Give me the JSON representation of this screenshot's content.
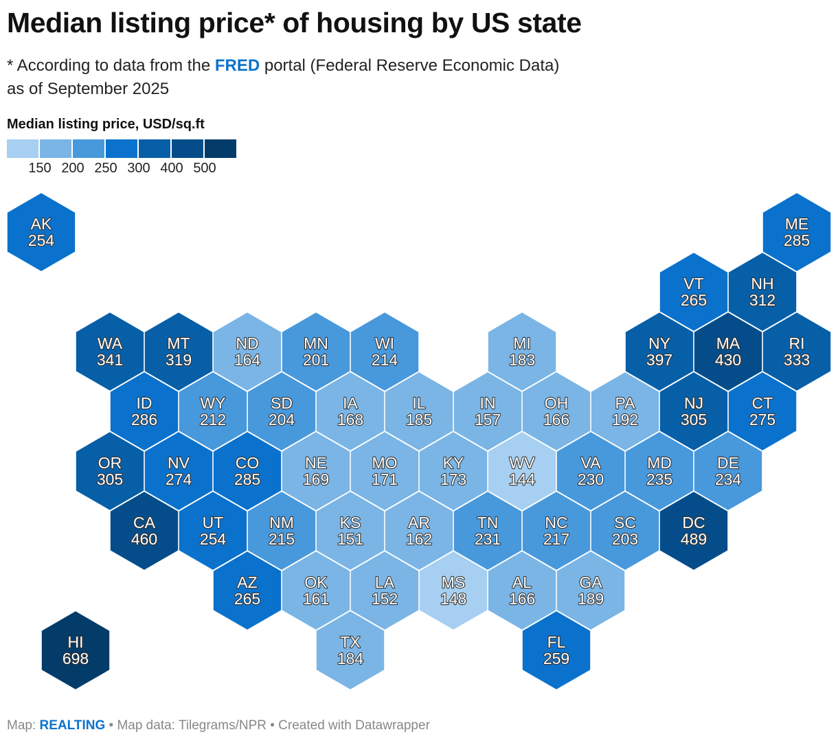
{
  "title": "Median listing price* of housing by US state",
  "subtitle": {
    "line1_prefix": "* According to data from the ",
    "line1_link": "FRED",
    "line1_suffix": " portal (Federal Reserve Economic Data)",
    "line2": "as of September 2025"
  },
  "legend": {
    "title": "Median listing price, USD/sq.ft",
    "colors": [
      "#a6cff1",
      "#7ab5e6",
      "#4898dc",
      "#0a72cc",
      "#075fa8",
      "#054d8a",
      "#033b69"
    ],
    "ticks": [
      "150",
      "200",
      "250",
      "300",
      "400",
      "500"
    ],
    "thresholds": [
      150,
      200,
      250,
      300,
      400,
      500
    ]
  },
  "chart_data": {
    "type": "hex-tile-map",
    "value_label": "Median listing price, USD/sq.ft",
    "states": [
      {
        "abbr": "AK",
        "value": 254,
        "row": 0,
        "col": 0
      },
      {
        "abbr": "ME",
        "value": 285,
        "row": 0,
        "col": 11
      },
      {
        "abbr": "VT",
        "value": 265,
        "row": 1,
        "col": 9
      },
      {
        "abbr": "NH",
        "value": 312,
        "row": 1,
        "col": 10
      },
      {
        "abbr": "WA",
        "value": 341,
        "row": 2,
        "col": 1
      },
      {
        "abbr": "MT",
        "value": 319,
        "row": 2,
        "col": 2
      },
      {
        "abbr": "ND",
        "value": 164,
        "row": 2,
        "col": 3
      },
      {
        "abbr": "MN",
        "value": 201,
        "row": 2,
        "col": 4
      },
      {
        "abbr": "WI",
        "value": 214,
        "row": 2,
        "col": 5
      },
      {
        "abbr": "MI",
        "value": 183,
        "row": 2,
        "col": 7
      },
      {
        "abbr": "NY",
        "value": 397,
        "row": 2,
        "col": 9
      },
      {
        "abbr": "MA",
        "value": 430,
        "row": 2,
        "col": 10
      },
      {
        "abbr": "RI",
        "value": 333,
        "row": 2,
        "col": 11
      },
      {
        "abbr": "ID",
        "value": 286,
        "row": 3,
        "col": 1
      },
      {
        "abbr": "WY",
        "value": 212,
        "row": 3,
        "col": 2
      },
      {
        "abbr": "SD",
        "value": 204,
        "row": 3,
        "col": 3
      },
      {
        "abbr": "IA",
        "value": 168,
        "row": 3,
        "col": 4
      },
      {
        "abbr": "IL",
        "value": 185,
        "row": 3,
        "col": 5
      },
      {
        "abbr": "IN",
        "value": 157,
        "row": 3,
        "col": 6
      },
      {
        "abbr": "OH",
        "value": 166,
        "row": 3,
        "col": 7
      },
      {
        "abbr": "PA",
        "value": 192,
        "row": 3,
        "col": 8
      },
      {
        "abbr": "NJ",
        "value": 305,
        "row": 3,
        "col": 9
      },
      {
        "abbr": "CT",
        "value": 275,
        "row": 3,
        "col": 10
      },
      {
        "abbr": "OR",
        "value": 305,
        "row": 4,
        "col": 1
      },
      {
        "abbr": "NV",
        "value": 274,
        "row": 4,
        "col": 2
      },
      {
        "abbr": "CO",
        "value": 285,
        "row": 4,
        "col": 3
      },
      {
        "abbr": "NE",
        "value": 169,
        "row": 4,
        "col": 4
      },
      {
        "abbr": "MO",
        "value": 171,
        "row": 4,
        "col": 5
      },
      {
        "abbr": "KY",
        "value": 173,
        "row": 4,
        "col": 6
      },
      {
        "abbr": "WV",
        "value": 144,
        "row": 4,
        "col": 7
      },
      {
        "abbr": "VA",
        "value": 230,
        "row": 4,
        "col": 8
      },
      {
        "abbr": "MD",
        "value": 235,
        "row": 4,
        "col": 9
      },
      {
        "abbr": "DE",
        "value": 234,
        "row": 4,
        "col": 10
      },
      {
        "abbr": "CA",
        "value": 460,
        "row": 5,
        "col": 1
      },
      {
        "abbr": "UT",
        "value": 254,
        "row": 5,
        "col": 2
      },
      {
        "abbr": "NM",
        "value": 215,
        "row": 5,
        "col": 3
      },
      {
        "abbr": "KS",
        "value": 151,
        "row": 5,
        "col": 4
      },
      {
        "abbr": "AR",
        "value": 162,
        "row": 5,
        "col": 5
      },
      {
        "abbr": "TN",
        "value": 231,
        "row": 5,
        "col": 6
      },
      {
        "abbr": "NC",
        "value": 217,
        "row": 5,
        "col": 7
      },
      {
        "abbr": "SC",
        "value": 203,
        "row": 5,
        "col": 8
      },
      {
        "abbr": "DC",
        "value": 489,
        "row": 5,
        "col": 9
      },
      {
        "abbr": "AZ",
        "value": 265,
        "row": 6,
        "col": 3
      },
      {
        "abbr": "OK",
        "value": 161,
        "row": 6,
        "col": 4
      },
      {
        "abbr": "LA",
        "value": 152,
        "row": 6,
        "col": 5
      },
      {
        "abbr": "MS",
        "value": 148,
        "row": 6,
        "col": 6
      },
      {
        "abbr": "AL",
        "value": 166,
        "row": 6,
        "col": 7
      },
      {
        "abbr": "GA",
        "value": 189,
        "row": 6,
        "col": 8
      },
      {
        "abbr": "HI",
        "value": 698,
        "row": 7,
        "col": 0
      },
      {
        "abbr": "TX",
        "value": 184,
        "row": 7,
        "col": 4
      },
      {
        "abbr": "FL",
        "value": 259,
        "row": 7,
        "col": 7
      }
    ]
  },
  "footer": {
    "prefix": "Map: ",
    "brand": "REALTING",
    "suffix": " • Map data: Tilegrams/NPR • Created with Datawrapper"
  }
}
